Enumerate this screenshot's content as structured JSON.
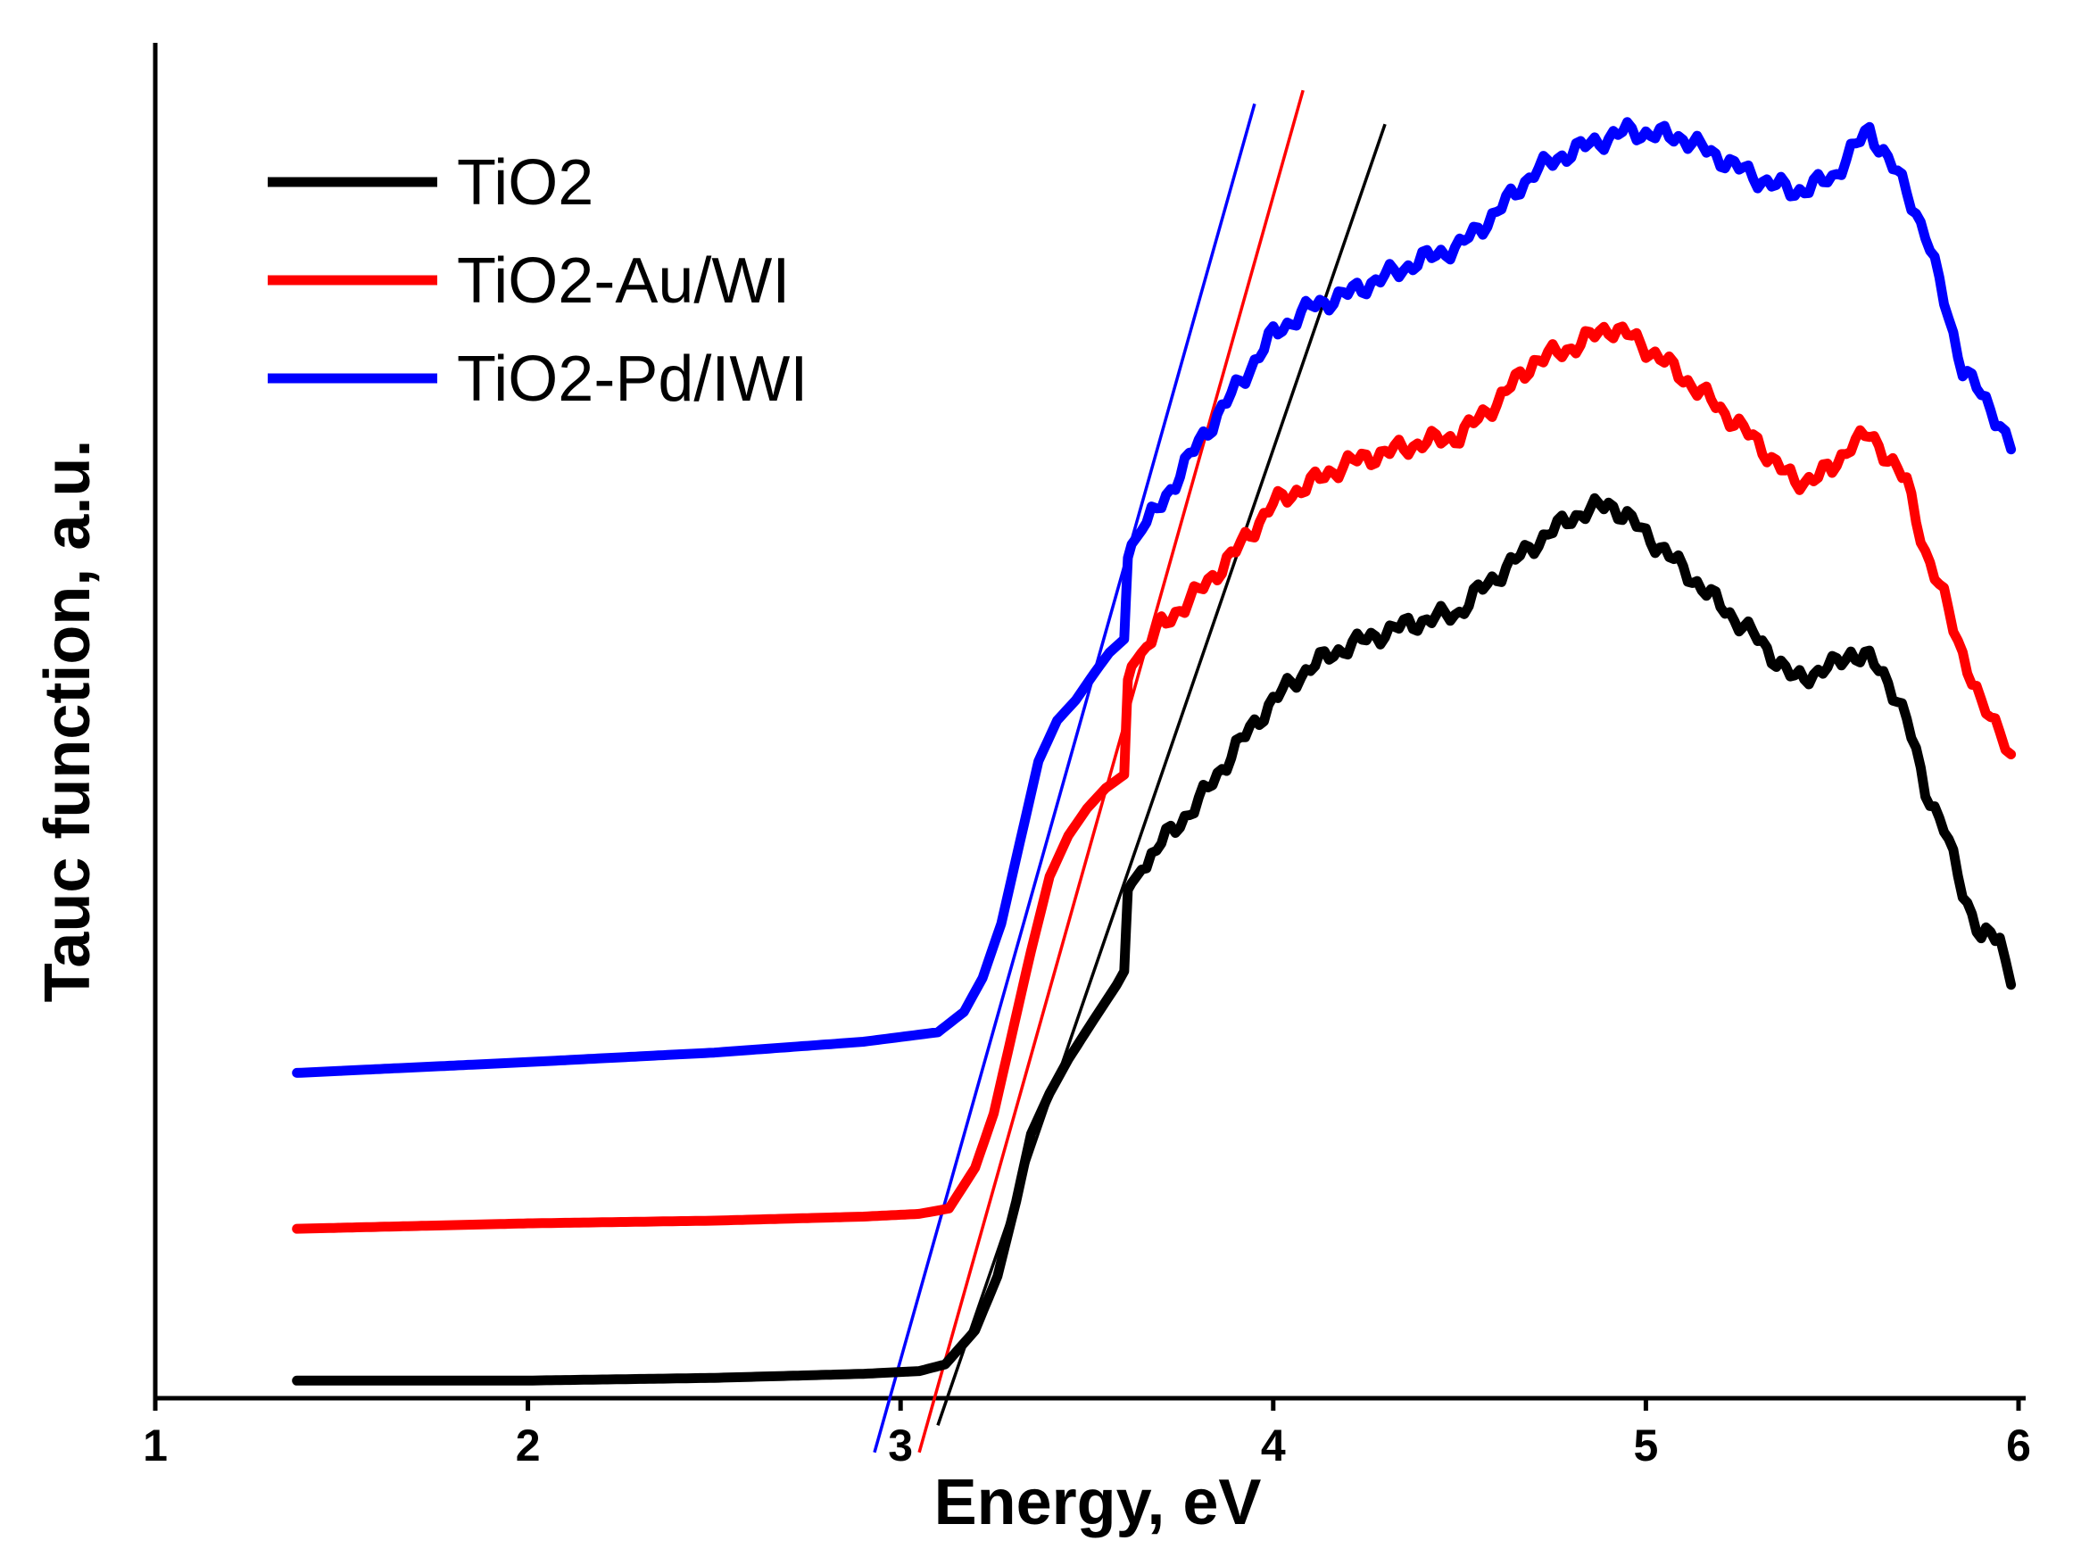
{
  "chart_data": {
    "type": "line",
    "xlabel": "Energy, eV",
    "ylabel": "Tauc function, a.u.",
    "xlim": [
      1,
      6
    ],
    "ylim": [
      0,
      100
    ],
    "xticks": [
      "1",
      "2",
      "3",
      "4",
      "5",
      "6"
    ],
    "yticks": [],
    "grid": false,
    "legend_position": "top-left",
    "series": [
      {
        "name": "TiO2",
        "color": "#000000",
        "x": [
          1.38,
          2.0,
          2.5,
          2.9,
          3.05,
          3.12,
          3.2,
          3.26,
          3.31,
          3.35,
          3.4,
          3.45,
          3.52,
          3.58,
          3.6,
          3.61,
          3.62,
          3.7,
          3.8,
          3.9,
          4.0,
          4.1,
          4.2,
          4.35,
          4.5,
          4.55,
          4.7,
          4.8,
          4.9,
          4.95,
          5.05,
          5.2,
          5.3,
          5.4,
          5.5,
          5.55,
          5.6,
          5.65,
          5.7,
          5.75,
          5.8,
          5.85,
          5.9,
          5.95,
          5.98
        ],
        "y": [
          1.3,
          1.3,
          1.5,
          1.8,
          2.0,
          2.5,
          5.0,
          9.0,
          14.5,
          19.5,
          22.5,
          25.0,
          28.0,
          30.5,
          31.5,
          37.5,
          38.0,
          41.0,
          44.0,
          48.0,
          51.5,
          54.0,
          55.5,
          57.0,
          58.0,
          59.5,
          63.0,
          65.0,
          66.0,
          65.0,
          62.5,
          58.5,
          56.0,
          53.0,
          54.0,
          55.0,
          54.5,
          53.0,
          50.0,
          45.0,
          42.0,
          37.5,
          34.0,
          34.0,
          30.5
        ]
      },
      {
        "name": "TiO2-Au/WI",
        "color": "#ff0000",
        "x": [
          1.38,
          2.0,
          2.5,
          2.9,
          3.05,
          3.13,
          3.2,
          3.25,
          3.3,
          3.35,
          3.4,
          3.45,
          3.5,
          3.55,
          3.6,
          3.61,
          3.62,
          3.7,
          3.8,
          3.9,
          4.0,
          4.1,
          4.2,
          4.4,
          4.5,
          4.6,
          4.7,
          4.8,
          4.9,
          4.95,
          5.05,
          5.2,
          5.3,
          5.4,
          5.5,
          5.55,
          5.6,
          5.65,
          5.7,
          5.75,
          5.8,
          5.85,
          5.9,
          5.95,
          5.98
        ],
        "y": [
          12.5,
          12.9,
          13.1,
          13.4,
          13.6,
          14.0,
          17.0,
          21.0,
          27.0,
          33.0,
          38.5,
          41.5,
          43.5,
          45.0,
          46.0,
          53.0,
          54.0,
          57.0,
          59.5,
          62.5,
          66.0,
          67.5,
          69.0,
          70.5,
          71.0,
          73.5,
          76.5,
          77.5,
          79.0,
          78.5,
          76.5,
          73.0,
          70.5,
          67.5,
          68.5,
          70.5,
          71.0,
          69.5,
          67.5,
          62.5,
          59.0,
          55.0,
          51.0,
          49.5,
          47.5
        ]
      },
      {
        "name": "TiO2-Pd/IWI",
        "color": "#0000ff",
        "x": [
          1.38,
          2.0,
          2.5,
          2.9,
          3.1,
          3.17,
          3.22,
          3.27,
          3.32,
          3.37,
          3.42,
          3.47,
          3.52,
          3.56,
          3.6,
          3.61,
          3.62,
          3.7,
          3.8,
          3.9,
          4.0,
          4.1,
          4.2,
          4.4,
          4.5,
          4.6,
          4.7,
          4.8,
          4.9,
          4.95,
          5.1,
          5.2,
          5.3,
          5.4,
          5.5,
          5.55,
          5.6,
          5.65,
          5.7,
          5.75,
          5.8,
          5.85,
          5.9,
          5.95,
          5.98
        ],
        "y": [
          24.0,
          24.8,
          25.5,
          26.3,
          27.0,
          28.5,
          31.0,
          35.0,
          41.0,
          47.0,
          50.0,
          51.5,
          53.5,
          55.0,
          56.0,
          62.0,
          63.0,
          66.0,
          70.5,
          74.5,
          78.5,
          80.5,
          81.5,
          84.0,
          85.0,
          87.5,
          90.5,
          92.0,
          93.0,
          93.5,
          93.0,
          91.5,
          90.0,
          89.0,
          90.0,
          92.0,
          93.5,
          91.5,
          89.0,
          86.0,
          81.0,
          76.0,
          74.0,
          72.0,
          70.0
        ]
      }
    ],
    "fit_lines": [
      {
        "color": "#000000",
        "x": [
          3.1,
          4.3
        ],
        "y": [
          -2.0,
          94.0
        ]
      },
      {
        "color": "#ff0000",
        "x": [
          3.05,
          4.08
        ],
        "y": [
          -4.0,
          96.5
        ]
      },
      {
        "color": "#0000ff",
        "x": [
          2.93,
          3.95
        ],
        "y": [
          -4.0,
          95.5
        ]
      }
    ]
  }
}
